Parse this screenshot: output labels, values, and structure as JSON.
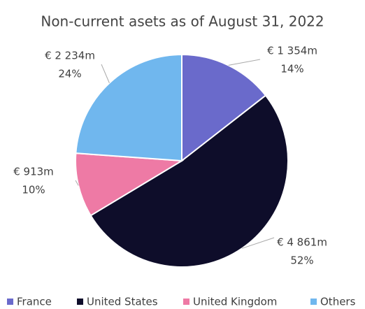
{
  "chart_data": {
    "type": "pie",
    "title": "Non-current asets as of August 31, 2022",
    "categories": [
      "France",
      "United States",
      "United Kingdom",
      "Others"
    ],
    "values": [
      1354,
      4861,
      913,
      2234
    ],
    "value_labels": [
      "€ 1 354m",
      "€ 4 861m",
      "€ 913m",
      "€ 2 234m"
    ],
    "share_labels": [
      "14%",
      "52%",
      "10%",
      "24%"
    ],
    "colors": [
      "#6a6acb",
      "#0e0d2a",
      "#ee7aa5",
      "#70b7ee"
    ],
    "legend": "bottom"
  }
}
